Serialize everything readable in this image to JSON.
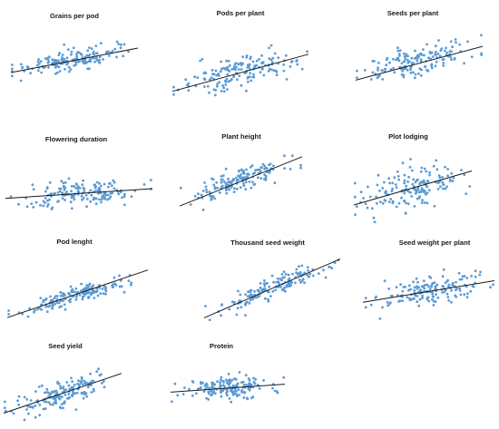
{
  "figure": {
    "background": "#ffffff"
  },
  "style": {
    "point_color": "#5b9bd5",
    "line_color": "#1a1a1a"
  },
  "chart_data": [
    {
      "type": "scatter",
      "title": "Grains per pod",
      "x": [
        1,
        2,
        3,
        4,
        5,
        6,
        7,
        8,
        9,
        10
      ],
      "y": [
        1.3,
        1.9,
        2.1,
        2.4,
        2.8,
        2.7,
        3.1,
        3.4,
        3.7,
        3.9
      ],
      "trend": [
        [
          0,
          1.2
        ],
        [
          10,
          3.9
        ]
      ],
      "xlim": [
        0,
        10
      ],
      "ylim": [
        0,
        6
      ],
      "grid": false,
      "n_points": 160,
      "spread": 0.55
    },
    {
      "type": "scatter",
      "title": "Pods per plant",
      "x": [
        1,
        2,
        3,
        4,
        5,
        6,
        7,
        8,
        9,
        10
      ],
      "y": [
        1.4,
        2.0,
        2.0,
        2.3,
        2.8,
        2.9,
        3.2,
        3.4,
        3.8,
        4.0
      ],
      "trend": [
        [
          0,
          0.8
        ],
        [
          10,
          4.3
        ]
      ],
      "xlim": [
        0,
        10
      ],
      "ylim": [
        0,
        6
      ],
      "grid": false,
      "n_points": 160,
      "spread": 0.7
    },
    {
      "type": "scatter",
      "title": "Seeds per plant",
      "x": [
        1,
        2,
        3,
        4,
        5,
        6,
        7,
        8,
        9,
        10
      ],
      "y": [
        1.4,
        2.0,
        2.5,
        2.5,
        2.9,
        3.1,
        3.4,
        3.7,
        3.9,
        4.2
      ],
      "trend": [
        [
          0,
          0.9
        ],
        [
          10,
          4.4
        ]
      ],
      "xlim": [
        0,
        10
      ],
      "ylim": [
        0,
        6
      ],
      "grid": false,
      "n_points": 160,
      "spread": 0.7
    },
    {
      "type": "scatter",
      "title": "Flowering duration",
      "x": [
        1,
        2,
        3,
        4,
        5,
        6,
        7,
        8,
        9,
        10
      ],
      "y": [
        2.0,
        2.4,
        2.3,
        2.6,
        2.5,
        2.7,
        2.6,
        2.9,
        2.8,
        3.0
      ],
      "trend": [
        [
          0,
          2.1
        ],
        [
          10,
          3.0
        ]
      ],
      "xlim": [
        0,
        10
      ],
      "ylim": [
        0,
        6
      ],
      "grid": false,
      "n_points": 160,
      "spread": 0.55
    },
    {
      "type": "scatter",
      "title": "Plant height",
      "x": [
        1,
        2,
        3,
        4,
        5,
        6,
        7,
        8,
        9,
        10
      ],
      "y": [
        1.1,
        1.6,
        2.2,
        2.6,
        3.2,
        3.6,
        4.0,
        4.4,
        4.7,
        5.0
      ],
      "trend": [
        [
          0,
          0.6
        ],
        [
          10,
          5.4
        ]
      ],
      "xlim": [
        0,
        10
      ],
      "ylim": [
        0,
        6
      ],
      "grid": false,
      "n_points": 160,
      "spread": 0.55
    },
    {
      "type": "scatter",
      "title": "Plot lodging",
      "x": [
        1,
        2,
        3,
        4,
        5,
        6,
        7,
        8,
        9,
        10
      ],
      "y": [
        1.8,
        2.1,
        2.6,
        2.9,
        3.2,
        3.4,
        3.7,
        3.9,
        4.2,
        4.4
      ],
      "trend": [
        [
          0,
          1.6
        ],
        [
          10,
          4.6
        ]
      ],
      "xlim": [
        0,
        10
      ],
      "ylim": [
        0,
        6
      ],
      "grid": false,
      "n_points": 160,
      "spread": 0.9
    },
    {
      "type": "scatter",
      "title": "Pod lenght",
      "x": [
        1,
        2,
        3,
        4,
        5,
        6,
        7,
        8,
        9,
        10
      ],
      "y": [
        0.9,
        1.4,
        1.9,
        2.3,
        2.8,
        3.0,
        3.4,
        3.8,
        4.2,
        4.6
      ],
      "trend": [
        [
          0,
          0.5
        ],
        [
          10,
          5.0
        ]
      ],
      "xlim": [
        0,
        10
      ],
      "ylim": [
        0,
        6
      ],
      "grid": false,
      "n_points": 160,
      "spread": 0.4
    },
    {
      "type": "scatter",
      "title": "Thousand seed weight",
      "x": [
        1,
        2,
        3,
        4,
        5,
        6,
        7,
        8,
        9,
        10
      ],
      "y": [
        0.8,
        1.4,
        2.0,
        2.5,
        3.1,
        3.6,
        4.1,
        4.6,
        5.0,
        5.4
      ],
      "trend": [
        [
          0,
          0.3
        ],
        [
          10,
          5.7
        ]
      ],
      "xlim": [
        0,
        10
      ],
      "ylim": [
        0,
        6
      ],
      "grid": false,
      "n_points": 160,
      "spread": 0.45
    },
    {
      "type": "scatter",
      "title": "Seed weight per plant",
      "x": [
        1,
        2,
        3,
        4,
        5,
        6,
        7,
        8,
        9,
        10
      ],
      "y": [
        2.1,
        2.4,
        2.6,
        2.9,
        3.1,
        3.3,
        3.5,
        3.7,
        3.9,
        4.1
      ],
      "trend": [
        [
          0,
          2.0
        ],
        [
          10,
          4.2
        ]
      ],
      "xlim": [
        0,
        10
      ],
      "ylim": [
        0,
        6
      ],
      "grid": false,
      "n_points": 160,
      "spread": 0.75
    },
    {
      "type": "scatter",
      "title": "Seed yield",
      "x": [
        1,
        2,
        3,
        4,
        5,
        6,
        7,
        8,
        9,
        10
      ],
      "y": [
        1.2,
        1.6,
        2.0,
        2.4,
        2.7,
        3.1,
        3.5,
        3.8,
        4.2,
        4.5
      ],
      "trend": [
        [
          0,
          0.8
        ],
        [
          10,
          4.9
        ]
      ],
      "xlim": [
        0,
        10
      ],
      "ylim": [
        0,
        6
      ],
      "grid": false,
      "n_points": 160,
      "spread": 0.65
    },
    {
      "type": "scatter",
      "title": "Protein",
      "x": [
        1,
        2,
        3,
        4,
        5,
        6,
        7,
        8,
        9,
        10
      ],
      "y": [
        2.3,
        2.4,
        2.5,
        2.6,
        2.8,
        2.9,
        3.0,
        3.1,
        3.2,
        3.3
      ],
      "trend": [
        [
          0,
          2.2
        ],
        [
          10,
          3.3
        ]
      ],
      "xlim": [
        0,
        10
      ],
      "ylim": [
        0,
        6
      ],
      "grid": false,
      "n_points": 160,
      "spread": 0.7
    }
  ]
}
